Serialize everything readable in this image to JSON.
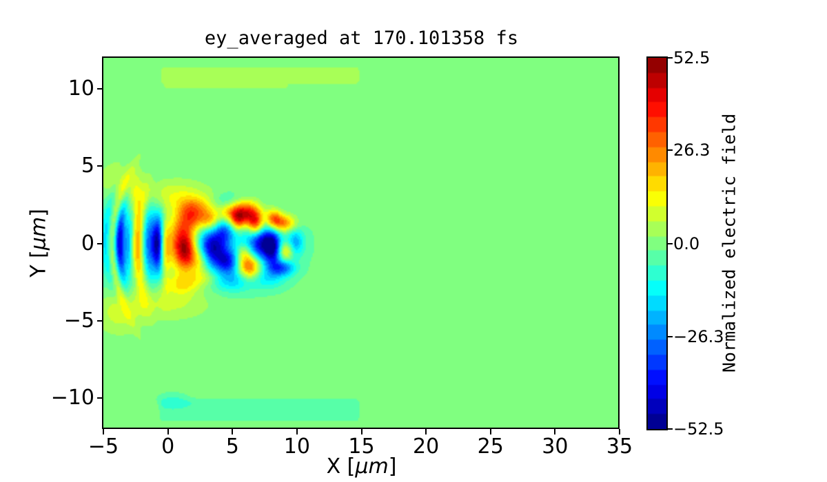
{
  "figure": {
    "background": "#ffffff",
    "text_color": "#000000",
    "zero_field_color": "#80ff80"
  },
  "chart_data": {
    "type": "heatmap",
    "title": "ey_averaged at 170.101358 fs",
    "xlabel": "X [μm]",
    "ylabel": "Y [μm]",
    "xlabel_parts": {
      "pre": "X [",
      "unit": "μm",
      "post": "]"
    },
    "ylabel_parts": {
      "pre": "Y [",
      "unit": "μm",
      "post": "]"
    },
    "xlim": [
      -5,
      35
    ],
    "ylim": [
      -12,
      12
    ],
    "grid": false,
    "colormap": "jet",
    "levels": 25,
    "x_ticks": [
      {
        "v": -5,
        "label": "−5"
      },
      {
        "v": 0,
        "label": "0"
      },
      {
        "v": 5,
        "label": "5"
      },
      {
        "v": 10,
        "label": "10"
      },
      {
        "v": 15,
        "label": "15"
      },
      {
        "v": 20,
        "label": "20"
      },
      {
        "v": 25,
        "label": "25"
      },
      {
        "v": 30,
        "label": "30"
      },
      {
        "v": 35,
        "label": "35"
      }
    ],
    "y_ticks": [
      {
        "v": 10,
        "label": "10"
      },
      {
        "v": 5,
        "label": "5"
      },
      {
        "v": 0,
        "label": "0"
      },
      {
        "v": -5,
        "label": "−5"
      },
      {
        "v": -10,
        "label": "−10"
      }
    ],
    "colorbar": {
      "label": "Normalized electric field",
      "vmin": -52.5,
      "vmax": 52.5,
      "ticks": [
        {
          "v": 52.5,
          "label": "52.5"
        },
        {
          "v": 26.3,
          "label": "26.3"
        },
        {
          "v": 0,
          "label": "0.0"
        },
        {
          "v": -26.3,
          "label": "−26.3"
        },
        {
          "v": -52.5,
          "label": "−52.5"
        }
      ]
    },
    "background_value": 0,
    "field_features": [
      {
        "t": "g",
        "x": 1.5,
        "y": -0.2,
        "sx": 4.8,
        "sy": 2.0,
        "a": -9
      },
      {
        "t": "g",
        "x": -3.0,
        "y": 0.0,
        "sx": 2.0,
        "sy": 2.6,
        "a": -6
      },
      {
        "t": "g",
        "x": 6.5,
        "y": 0.0,
        "sx": 2.5,
        "sy": 1.6,
        "a": -6
      },
      {
        "t": "g",
        "x": -4.8,
        "y": 0.3,
        "sx": 0.25,
        "sy": 2.6,
        "a": -10,
        "c": 0.06
      },
      {
        "t": "g",
        "x": -4.3,
        "y": -0.2,
        "sx": 0.25,
        "sy": 3.0,
        "a": 16,
        "c": 0.06
      },
      {
        "t": "g",
        "x": -3.75,
        "y": 0.1,
        "sx": 0.26,
        "sy": 1.6,
        "a": -35,
        "c": 0.05
      },
      {
        "t": "g",
        "x": -3.05,
        "y": 0.0,
        "sx": 0.22,
        "sy": 1.2,
        "a": -12,
        "c": 0.05
      },
      {
        "t": "g",
        "x": -2.35,
        "y": -0.3,
        "sx": 0.34,
        "sy": 1.9,
        "a": 33,
        "c": 0.04
      },
      {
        "t": "g",
        "x": -2.45,
        "y": 2.5,
        "sx": 0.3,
        "sy": 1.1,
        "a": 10
      },
      {
        "t": "g",
        "x": -1.55,
        "y": 0.1,
        "sx": 0.28,
        "sy": 1.7,
        "a": -15,
        "c": 0.04
      },
      {
        "t": "g",
        "x": -0.85,
        "y": 0.0,
        "sx": 0.3,
        "sy": 1.2,
        "a": -42,
        "c": 0.03
      },
      {
        "t": "g",
        "x": -0.15,
        "y": -0.5,
        "sx": 0.26,
        "sy": 1.6,
        "a": 16
      },
      {
        "t": "g",
        "x": 1.05,
        "y": 0.0,
        "sx": 0.8,
        "sy": 1.3,
        "a": 46
      },
      {
        "t": "g",
        "x": 1.4,
        "y": -0.5,
        "sx": 0.45,
        "sy": 0.75,
        "a": 18
      },
      {
        "t": "g",
        "x": 1.9,
        "y": 1.7,
        "sx": 0.7,
        "sy": 0.6,
        "a": 24
      },
      {
        "t": "g",
        "x": 2.4,
        "y": -1.1,
        "sx": 0.6,
        "sy": 0.6,
        "a": 20
      },
      {
        "t": "g",
        "x": 3.5,
        "y": -0.3,
        "sx": 0.75,
        "sy": 0.85,
        "a": -38
      },
      {
        "t": "g",
        "x": 4.6,
        "y": -1.2,
        "sx": 0.55,
        "sy": 0.5,
        "a": -26
      },
      {
        "t": "g",
        "x": 3.2,
        "y": 1.5,
        "sx": 0.55,
        "sy": 0.5,
        "a": 24
      },
      {
        "t": "g",
        "x": 4.4,
        "y": 0.8,
        "sx": 0.5,
        "sy": 0.5,
        "a": -16
      },
      {
        "t": "g",
        "x": 4.9,
        "y": 2.0,
        "sx": 0.7,
        "sy": 0.5,
        "a": 20
      },
      {
        "t": "g",
        "x": 2.3,
        "y": 2.4,
        "sx": 1.0,
        "sy": 0.5,
        "a": 14
      },
      {
        "t": "g",
        "x": 6.1,
        "y": 1.9,
        "sx": 0.8,
        "sy": 0.55,
        "a": 44
      },
      {
        "t": "g",
        "x": 6.8,
        "y": 1.2,
        "sx": 0.4,
        "sy": 0.5,
        "a": 30
      },
      {
        "t": "g",
        "x": 5.4,
        "y": 1.4,
        "sx": 0.35,
        "sy": 0.45,
        "a": 18
      },
      {
        "t": "g",
        "x": 7.3,
        "y": 0.0,
        "sx": 0.7,
        "sy": 0.7,
        "a": -34
      },
      {
        "t": "g",
        "x": 6.3,
        "y": -1.5,
        "sx": 0.6,
        "sy": 0.55,
        "a": 38
      },
      {
        "t": "g",
        "x": 5.9,
        "y": -0.6,
        "sx": 0.4,
        "sy": 0.4,
        "a": 16
      },
      {
        "t": "g",
        "x": 8.8,
        "y": 1.3,
        "sx": 0.75,
        "sy": 0.4,
        "a": 32
      },
      {
        "t": "g",
        "x": 8.2,
        "y": 1.7,
        "sx": 0.4,
        "sy": 0.4,
        "a": 22
      },
      {
        "t": "g",
        "x": 8.1,
        "y": -0.3,
        "sx": 0.45,
        "sy": 0.8,
        "a": -34
      },
      {
        "t": "g",
        "x": 9.1,
        "y": -0.5,
        "sx": 0.4,
        "sy": 0.4,
        "a": 22
      },
      {
        "t": "g",
        "x": 8.8,
        "y": -1.6,
        "sx": 0.7,
        "sy": 0.35,
        "a": -26
      },
      {
        "t": "g",
        "x": 9.9,
        "y": 0.1,
        "sx": 0.45,
        "sy": 0.6,
        "a": -18
      },
      {
        "t": "g",
        "x": 5.0,
        "y": -2.4,
        "sx": 1.1,
        "sy": 0.5,
        "a": -14
      },
      {
        "t": "g",
        "x": 7.8,
        "y": -2.3,
        "sx": 0.9,
        "sy": 0.45,
        "a": -10
      },
      {
        "t": "g",
        "x": 1.2,
        "y": -2.6,
        "sx": 0.9,
        "sy": 0.45,
        "a": 13
      },
      {
        "t": "g",
        "x": 2.9,
        "y": -2.2,
        "sx": 0.8,
        "sy": 0.4,
        "a": 12
      },
      {
        "t": "g",
        "x": 0.3,
        "y": 3.1,
        "sx": 2.2,
        "sy": 0.7,
        "a": 11
      },
      {
        "t": "g",
        "x": -0.2,
        "y": -3.7,
        "sx": 2.4,
        "sy": 0.8,
        "a": 10
      },
      {
        "t": "g",
        "x": -3.6,
        "y": 4.1,
        "sx": 1.1,
        "sy": 0.8,
        "a": 9
      },
      {
        "t": "g",
        "x": -3.7,
        "y": -4.5,
        "sx": 1.2,
        "sy": 0.9,
        "a": 9
      },
      {
        "t": "g",
        "x": 4.6,
        "y": 2.7,
        "sx": 0.8,
        "sy": 0.4,
        "a": -9
      },
      {
        "t": "g",
        "x": 0.4,
        "y": -10.1,
        "sx": 0.9,
        "sy": 0.35,
        "a": -6
      },
      {
        "t": "s",
        "x0": -0.9,
        "x1": 15.2,
        "y0": 9.95,
        "y1": 11.75,
        "a": 4,
        "sf": 0.7
      },
      {
        "t": "s",
        "x0": -0.4,
        "x1": 9.4,
        "y0": 9.9,
        "y1": 10.4,
        "a": 5,
        "sf": 0.35
      },
      {
        "t": "s",
        "x0": -0.9,
        "x1": 15.1,
        "y0": -11.75,
        "y1": -9.8,
        "a": -5,
        "sf": 0.6
      }
    ]
  }
}
